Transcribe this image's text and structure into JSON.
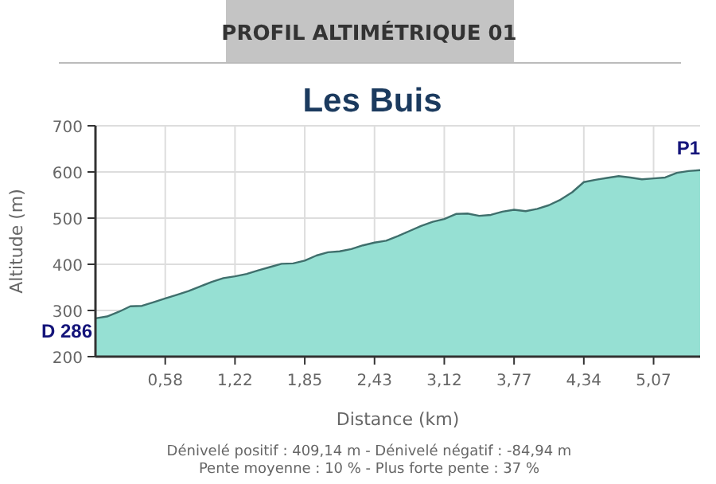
{
  "chart_data": {
    "type": "area",
    "subtitle": "PROFIL ALTIMÉTRIQUE 01",
    "title": "Les Buis",
    "xlabel": "Distance (km)",
    "ylabel": "Altitude (m)",
    "categories": [
      null,
      null,
      null,
      null,
      null,
      null,
      "0,58",
      null,
      null,
      null,
      null,
      null,
      "1,22",
      null,
      null,
      null,
      null,
      null,
      "1,85",
      null,
      null,
      null,
      null,
      null,
      "2,43",
      null,
      null,
      null,
      null,
      null,
      "3,12",
      null,
      null,
      null,
      null,
      null,
      "3,77",
      null,
      null,
      null,
      null,
      null,
      "4,34",
      null,
      null,
      null,
      null,
      null,
      "5,07",
      null,
      null,
      null,
      null
    ],
    "series": [
      {
        "color": "#96e0d3",
        "values": [
          283,
          287,
          297,
          309,
          310,
          318,
          326,
          334,
          342,
          352,
          362,
          370,
          374,
          379,
          387,
          394,
          401,
          402,
          408,
          419,
          426,
          428,
          433,
          441,
          447,
          451,
          461,
          472,
          483,
          492,
          498,
          509,
          510,
          505,
          507,
          514,
          518,
          515,
          520,
          528,
          540,
          556,
          578,
          583,
          587,
          591,
          588,
          584,
          586,
          588,
          598,
          602,
          604
        ]
      }
    ],
    "ylim": [
      200,
      700
    ],
    "yticks": [
      200,
      300,
      400,
      500,
      600,
      700
    ],
    "grid": true,
    "annotations": [
      "D 286",
      "P1",
      "Dénivelé positif : 409,14 m - Dénivelé négatif : -84,94 m",
      "Pente moyenne : 10 % - Plus forte pente : 37 %"
    ]
  }
}
